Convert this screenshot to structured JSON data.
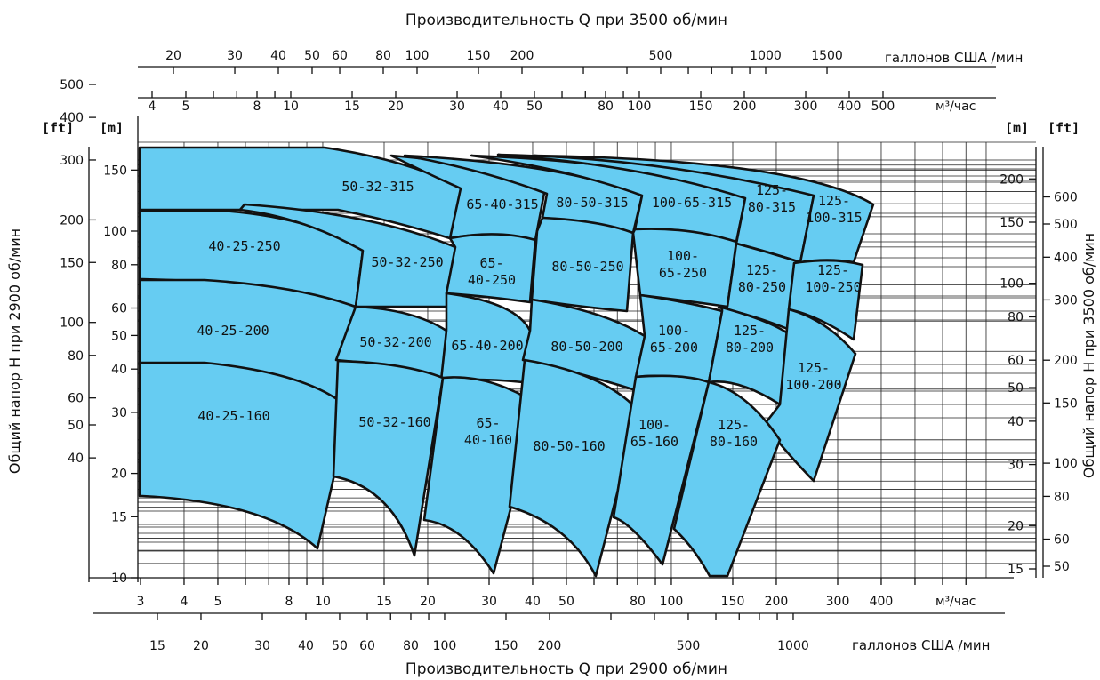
{
  "chart_data": {
    "type": "area",
    "title": "",
    "top_axis_title": "Производительность Q при 3500 об/мин",
    "bottom_axis_title": "Производительность Q при 2900 об/мин",
    "left_axis_title": "Общий напор H при 2900 об/мин",
    "right_axis_title": "Общий напор H при 3500 об/мин",
    "x_scale": "log",
    "y_scale": "log",
    "xlim_m3h": [
      3,
      800
    ],
    "ylim_m": [
      10,
      160
    ],
    "grid": true,
    "unit_labels": {
      "m": "[m]",
      "ft": "[ft]",
      "m3h": "м³/час",
      "gpm": "галлонов США /мин"
    },
    "axes": {
      "bottom_m3h": [
        {
          "label": "3",
          "value": 3
        },
        {
          "label": "4",
          "value": 4
        },
        {
          "label": "5",
          "value": 5
        },
        {
          "label": "8",
          "value": 8
        },
        {
          "label": "10",
          "value": 10
        },
        {
          "label": "15",
          "value": 15
        },
        {
          "label": "20",
          "value": 20
        },
        {
          "label": "30",
          "value": 30
        },
        {
          "label": "40",
          "value": 40
        },
        {
          "label": "50",
          "value": 50
        },
        {
          "label": "80",
          "value": 80
        },
        {
          "label": "100",
          "value": 100
        },
        {
          "label": "150",
          "value": 150
        },
        {
          "label": "200",
          "value": 200
        },
        {
          "label": "300",
          "value": 300
        },
        {
          "label": "400",
          "value": 400
        }
      ],
      "bottom_gpm": [
        {
          "label": "15",
          "value": 15
        },
        {
          "label": "20",
          "value": 20
        },
        {
          "label": "30",
          "value": 30
        },
        {
          "label": "40",
          "value": 40
        },
        {
          "label": "50",
          "value": 50
        },
        {
          "label": "60",
          "value": 60
        },
        {
          "label": "80",
          "value": 80
        },
        {
          "label": "100",
          "value": 100
        },
        {
          "label": "150",
          "value": 150
        },
        {
          "label": "200",
          "value": 200
        },
        {
          "label": "500",
          "value": 500
        },
        {
          "label": "1000",
          "value": 1000
        }
      ],
      "top_gpm": [
        {
          "label": "20",
          "value": 20
        },
        {
          "label": "30",
          "value": 30
        },
        {
          "label": "40",
          "value": 40
        },
        {
          "label": "50",
          "value": 50
        },
        {
          "label": "60",
          "value": 60
        },
        {
          "label": "80",
          "value": 80
        },
        {
          "label": "100",
          "value": 100
        },
        {
          "label": "150",
          "value": 150
        },
        {
          "label": "200",
          "value": 200
        },
        {
          "label": "500",
          "value": 500
        },
        {
          "label": "1000",
          "value": 1000
        },
        {
          "label": "1500",
          "value": 1500
        }
      ],
      "top_m3h": [
        {
          "label": "4",
          "value": 4
        },
        {
          "label": "5",
          "value": 5
        },
        {
          "label": "8",
          "value": 8
        },
        {
          "label": "10",
          "value": 10
        },
        {
          "label": "15",
          "value": 15
        },
        {
          "label": "20",
          "value": 20
        },
        {
          "label": "30",
          "value": 30
        },
        {
          "label": "40",
          "value": 40
        },
        {
          "label": "50",
          "value": 50
        },
        {
          "label": "80",
          "value": 80
        },
        {
          "label": "100",
          "value": 100
        },
        {
          "label": "150",
          "value": 150
        },
        {
          "label": "200",
          "value": 200
        },
        {
          "label": "300",
          "value": 300
        },
        {
          "label": "400",
          "value": 400
        },
        {
          "label": "500",
          "value": 500
        }
      ],
      "left_m": [
        {
          "label": "150",
          "value": 150
        },
        {
          "label": "100",
          "value": 100
        },
        {
          "label": "80",
          "value": 80
        },
        {
          "label": "60",
          "value": 60
        },
        {
          "label": "50",
          "value": 50
        },
        {
          "label": "40",
          "value": 40
        },
        {
          "label": "30",
          "value": 30
        },
        {
          "label": "20",
          "value": 20
        },
        {
          "label": "15",
          "value": 15
        },
        {
          "label": "10",
          "value": 10
        }
      ],
      "left_ft": [
        {
          "label": "500",
          "value": 500
        },
        {
          "label": "400",
          "value": 400
        },
        {
          "label": "300",
          "value": 300
        },
        {
          "label": "200",
          "value": 200
        },
        {
          "label": "150",
          "value": 150
        },
        {
          "label": "100",
          "value": 100
        },
        {
          "label": "80",
          "value": 80
        },
        {
          "label": "60",
          "value": 60
        },
        {
          "label": "50",
          "value": 50
        },
        {
          "label": "40",
          "value": 40
        }
      ],
      "right_m": [
        {
          "label": "200",
          "value": 200
        },
        {
          "label": "150",
          "value": 150
        },
        {
          "label": "100",
          "value": 100
        },
        {
          "label": "80",
          "value": 80
        },
        {
          "label": "60",
          "value": 60
        },
        {
          "label": "50",
          "value": 50
        },
        {
          "label": "40",
          "value": 40
        },
        {
          "label": "30",
          "value": 30
        },
        {
          "label": "20",
          "value": 20
        },
        {
          "label": "15",
          "value": 15
        }
      ],
      "right_ft": [
        {
          "label": "600",
          "value": 600
        },
        {
          "label": "500",
          "value": 500
        },
        {
          "label": "400",
          "value": 400
        },
        {
          "label": "300",
          "value": 300
        },
        {
          "label": "200",
          "value": 200
        },
        {
          "label": "150",
          "value": 150
        },
        {
          "label": "100",
          "value": 100
        },
        {
          "label": "80",
          "value": 80
        },
        {
          "label": "60",
          "value": 60
        },
        {
          "label": "50",
          "value": 50
        }
      ]
    },
    "regions": [
      {
        "name": "50-32-315",
        "color": "#66CCF2",
        "label": "50-32-315"
      },
      {
        "name": "65-40-315",
        "color": "#66CCF2",
        "label": "65-40-315"
      },
      {
        "name": "80-50-315",
        "color": "#66CCF2",
        "label": "80-50-315"
      },
      {
        "name": "100-65-315",
        "color": "#66CCF2",
        "label": "100-65-315"
      },
      {
        "name": "125-80-315",
        "color": "#66CCF2",
        "label": "125-\n80-315"
      },
      {
        "name": "125-100-315",
        "color": "#66CCF2",
        "label": "125-\n100-315"
      },
      {
        "name": "40-25-250",
        "color": "#66CCF2",
        "label": "40-25-250"
      },
      {
        "name": "50-32-250",
        "color": "#66CCF2",
        "label": "50-32-250"
      },
      {
        "name": "65-40-250",
        "color": "#66CCF2",
        "label": "65-\n40-250"
      },
      {
        "name": "80-50-250",
        "color": "#66CCF2",
        "label": "80-50-250"
      },
      {
        "name": "100-65-250",
        "color": "#66CCF2",
        "label": "100-\n65-250"
      },
      {
        "name": "125-80-250",
        "color": "#66CCF2",
        "label": "125-\n80-250"
      },
      {
        "name": "125-100-250",
        "color": "#66CCF2",
        "label": "125-\n100-250"
      },
      {
        "name": "40-25-200",
        "color": "#66CCF2",
        "label": "40-25-200"
      },
      {
        "name": "50-32-200",
        "color": "#66CCF2",
        "label": "50-32-200"
      },
      {
        "name": "65-40-200",
        "color": "#66CCF2",
        "label": "65-40-200"
      },
      {
        "name": "80-50-200",
        "color": "#66CCF2",
        "label": "80-50-200"
      },
      {
        "name": "100-65-200",
        "color": "#66CCF2",
        "label": "100-\n65-200"
      },
      {
        "name": "125-80-200",
        "color": "#66CCF2",
        "label": "125-\n80-200"
      },
      {
        "name": "125-100-200",
        "color": "#66CCF2",
        "label": "125-\n100-200"
      },
      {
        "name": "40-25-160",
        "color": "#66CCF2",
        "label": "40-25-160"
      },
      {
        "name": "50-32-160",
        "color": "#66CCF2",
        "label": "50-32-160"
      },
      {
        "name": "65-40-160",
        "color": "#66CCF2",
        "label": "65-\n40-160"
      },
      {
        "name": "80-50-160",
        "color": "#66CCF2",
        "label": "80-50-160"
      },
      {
        "name": "100-65-160",
        "color": "#66CCF2",
        "label": "100-\n65-160"
      },
      {
        "name": "125-80-160",
        "color": "#66CCF2",
        "label": "125-\n80-160"
      }
    ]
  }
}
